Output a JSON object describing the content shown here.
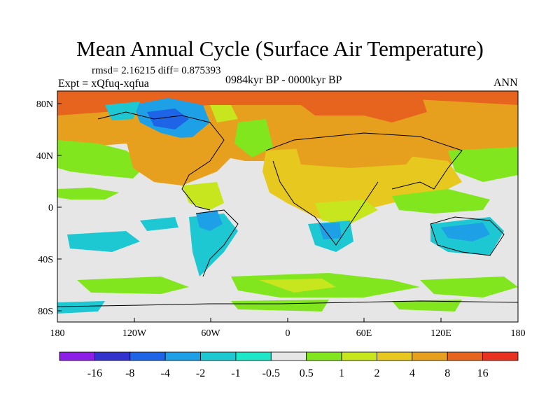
{
  "title": "Mean Annual Cycle (Surface Air Temperature)",
  "stats": "rmsd= 2.16215 diff= 0.875393",
  "experiment": "Expt = xQfuq-xqfua",
  "period": "0984kyr BP - 0000kyr BP",
  "season": "ANN",
  "lat_labels": [
    "80N",
    "40N",
    "0",
    "40S",
    "80S"
  ],
  "lon_labels": [
    "180",
    "120W",
    "60W",
    "0",
    "60E",
    "120E",
    "180"
  ],
  "colorbar": {
    "colors": [
      "#8c1fe6",
      "#3232cd",
      "#1e64e6",
      "#1ea0e6",
      "#1ec8d2",
      "#1ee6c8",
      "#e6e6e6",
      "#82e61e",
      "#c8e61e",
      "#e6c81e",
      "#e6a01e",
      "#e6641e",
      "#e6321e"
    ],
    "labels": [
      "-16",
      "-8",
      "-4",
      "-2",
      "-1",
      "-0.5",
      "0.5",
      "1",
      "2",
      "4",
      "8",
      "16"
    ]
  },
  "palette": {
    "ocean_neutral": "#e6e6e6",
    "light_green": "#82e61e",
    "yellow_green": "#c8e61e",
    "gold": "#e6c81e",
    "orange": "#e6a01e",
    "dark_orange": "#e6641e",
    "cyan": "#1ec8d2",
    "blue": "#1e64e6"
  }
}
